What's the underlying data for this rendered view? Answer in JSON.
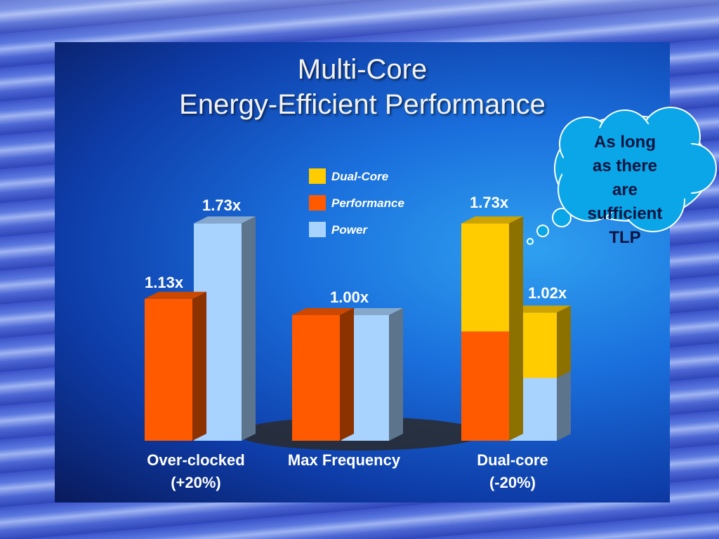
{
  "slide": {
    "title_line1": "Multi-Core",
    "title_line2": "Energy-Efficient Performance"
  },
  "callout": {
    "lines": [
      "As long",
      "as there",
      "are",
      "sufficient",
      "TLP"
    ]
  },
  "colors": {
    "dual_core": "#ffcc00",
    "performance": "#ff5a00",
    "power": "#a8d2ff"
  },
  "chart_data": {
    "type": "bar",
    "title": "",
    "legend": [
      "Dual-Core",
      "Performance",
      "Power"
    ],
    "legend_position": "top-center",
    "categories": [
      "Over-clocked\n(+20%)",
      "Max Frequency",
      "Dual-core\n(-20%)"
    ],
    "series": [
      {
        "name": "Performance",
        "values": [
          1.13,
          1.0,
          1.73
        ]
      },
      {
        "name": "Power",
        "values": [
          1.73,
          1.0,
          1.02
        ]
      }
    ],
    "value_labels": [
      "1.13x",
      "1.73x",
      "1.00x",
      "1.73x",
      "1.02x"
    ],
    "notes": "Dual-core performance bar shows single-core part in orange stacked with dual-core gain in yellow; power bar shows power part in light blue stacked with yellow.",
    "ylim": [
      0,
      1.9
    ]
  }
}
